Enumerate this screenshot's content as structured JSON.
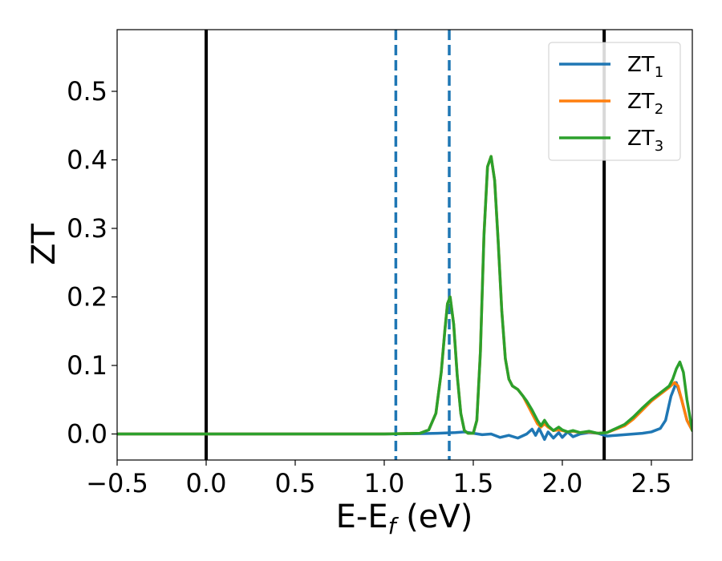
{
  "chart_data": {
    "type": "line",
    "xlabel": {
      "main": "E-E",
      "sub": "f",
      "unit": " (eV)"
    },
    "ylabel": "ZT",
    "xlim": [
      -0.5,
      2.73
    ],
    "ylim": [
      -0.038,
      0.59
    ],
    "xticks": [
      {
        "value": -0.5,
        "label": "−0.5"
      },
      {
        "value": 0.0,
        "label": "0.0"
      },
      {
        "value": 0.5,
        "label": "0.5"
      },
      {
        "value": 1.0,
        "label": "1.0"
      },
      {
        "value": 1.5,
        "label": "1.5"
      },
      {
        "value": 2.0,
        "label": "2.0"
      },
      {
        "value": 2.5,
        "label": "2.5"
      }
    ],
    "yticks": [
      {
        "value": 0.0,
        "label": "0.0"
      },
      {
        "value": 0.1,
        "label": "0.1"
      },
      {
        "value": 0.2,
        "label": "0.2"
      },
      {
        "value": 0.3,
        "label": "0.3"
      },
      {
        "value": 0.4,
        "label": "0.4"
      },
      {
        "value": 0.5,
        "label": "0.5"
      }
    ],
    "vlines": [
      {
        "x": 0.0,
        "color": "#000000",
        "style": "solid"
      },
      {
        "x": 2.235,
        "color": "#000000",
        "style": "solid"
      },
      {
        "x": 1.065,
        "color": "#1f77b4",
        "style": "dashed"
      },
      {
        "x": 1.365,
        "color": "#1f77b4",
        "style": "dashed"
      }
    ],
    "legend": {
      "position": "top-right",
      "entries": [
        {
          "main": "ZT",
          "sub": "1"
        },
        {
          "main": "ZT",
          "sub": "2"
        },
        {
          "main": "ZT",
          "sub": "3"
        }
      ]
    },
    "series": [
      {
        "color": "#1f77b4",
        "x": [
          -0.5,
          1.0,
          1.2,
          1.3,
          1.4,
          1.45,
          1.5,
          1.55,
          1.6,
          1.65,
          1.7,
          1.75,
          1.8,
          1.83,
          1.85,
          1.87,
          1.9,
          1.92,
          1.95,
          1.98,
          2.0,
          2.03,
          2.06,
          2.1,
          2.15,
          2.2,
          2.25,
          2.3,
          2.35,
          2.4,
          2.45,
          2.5,
          2.55,
          2.58,
          2.61,
          2.64,
          2.67,
          2.7,
          2.73
        ],
        "y": [
          0.0,
          0.0,
          0.0005,
          0.001,
          0.002,
          0.003,
          0.001,
          -0.001,
          0.0,
          -0.005,
          -0.002,
          -0.006,
          0.0,
          0.007,
          -0.002,
          0.008,
          -0.008,
          0.003,
          -0.006,
          0.002,
          -0.005,
          0.003,
          -0.004,
          0.0,
          0.002,
          0.001,
          -0.003,
          -0.002,
          -0.001,
          0.0,
          0.001,
          0.003,
          0.008,
          0.02,
          0.055,
          0.075,
          0.05,
          0.02,
          0.005
        ]
      },
      {
        "color": "#ff7f0e",
        "x": [
          -0.5,
          1.0,
          1.2,
          1.25,
          1.29,
          1.32,
          1.34,
          1.355,
          1.37,
          1.39,
          1.41,
          1.43,
          1.45,
          1.47,
          1.5,
          1.52,
          1.54,
          1.56,
          1.58,
          1.6,
          1.62,
          1.64,
          1.66,
          1.68,
          1.7,
          1.72,
          1.75,
          1.78,
          1.8,
          1.83,
          1.86,
          1.88,
          1.9,
          1.92,
          1.95,
          1.98,
          2.0,
          2.03,
          2.06,
          2.1,
          2.15,
          2.2,
          2.25,
          2.3,
          2.35,
          2.4,
          2.45,
          2.5,
          2.55,
          2.6,
          2.63,
          2.65,
          2.67,
          2.7,
          2.73
        ],
        "y": [
          0.0,
          0.0,
          0.001,
          0.006,
          0.03,
          0.09,
          0.15,
          0.19,
          0.2,
          0.16,
          0.085,
          0.03,
          0.005,
          0.001,
          0.001,
          0.02,
          0.12,
          0.29,
          0.39,
          0.405,
          0.37,
          0.28,
          0.18,
          0.11,
          0.08,
          0.07,
          0.065,
          0.055,
          0.045,
          0.03,
          0.015,
          0.01,
          0.015,
          0.01,
          0.005,
          0.006,
          0.005,
          0.003,
          0.004,
          0.002,
          0.003,
          0.001,
          0.002,
          0.007,
          0.012,
          0.022,
          0.035,
          0.048,
          0.058,
          0.068,
          0.075,
          0.07,
          0.05,
          0.02,
          0.005
        ]
      },
      {
        "color": "#2ca02c",
        "x": [
          -0.5,
          1.0,
          1.2,
          1.25,
          1.29,
          1.32,
          1.34,
          1.355,
          1.37,
          1.39,
          1.41,
          1.43,
          1.45,
          1.47,
          1.5,
          1.52,
          1.54,
          1.56,
          1.58,
          1.6,
          1.62,
          1.64,
          1.66,
          1.68,
          1.7,
          1.72,
          1.75,
          1.78,
          1.8,
          1.83,
          1.86,
          1.88,
          1.9,
          1.92,
          1.95,
          1.98,
          2.0,
          2.03,
          2.06,
          2.1,
          2.15,
          2.2,
          2.25,
          2.3,
          2.35,
          2.4,
          2.45,
          2.5,
          2.55,
          2.6,
          2.62,
          2.64,
          2.66,
          2.68,
          2.7,
          2.73
        ],
        "y": [
          0.0,
          0.0,
          0.001,
          0.006,
          0.03,
          0.09,
          0.15,
          0.19,
          0.2,
          0.16,
          0.085,
          0.03,
          0.005,
          0.001,
          0.001,
          0.02,
          0.12,
          0.29,
          0.39,
          0.405,
          0.37,
          0.28,
          0.18,
          0.11,
          0.08,
          0.07,
          0.065,
          0.055,
          0.048,
          0.035,
          0.02,
          0.012,
          0.02,
          0.012,
          0.005,
          0.01,
          0.006,
          0.003,
          0.005,
          0.002,
          0.004,
          0.001,
          0.002,
          0.008,
          0.014,
          0.025,
          0.038,
          0.05,
          0.06,
          0.07,
          0.08,
          0.095,
          0.105,
          0.09,
          0.05,
          0.005
        ]
      }
    ]
  }
}
